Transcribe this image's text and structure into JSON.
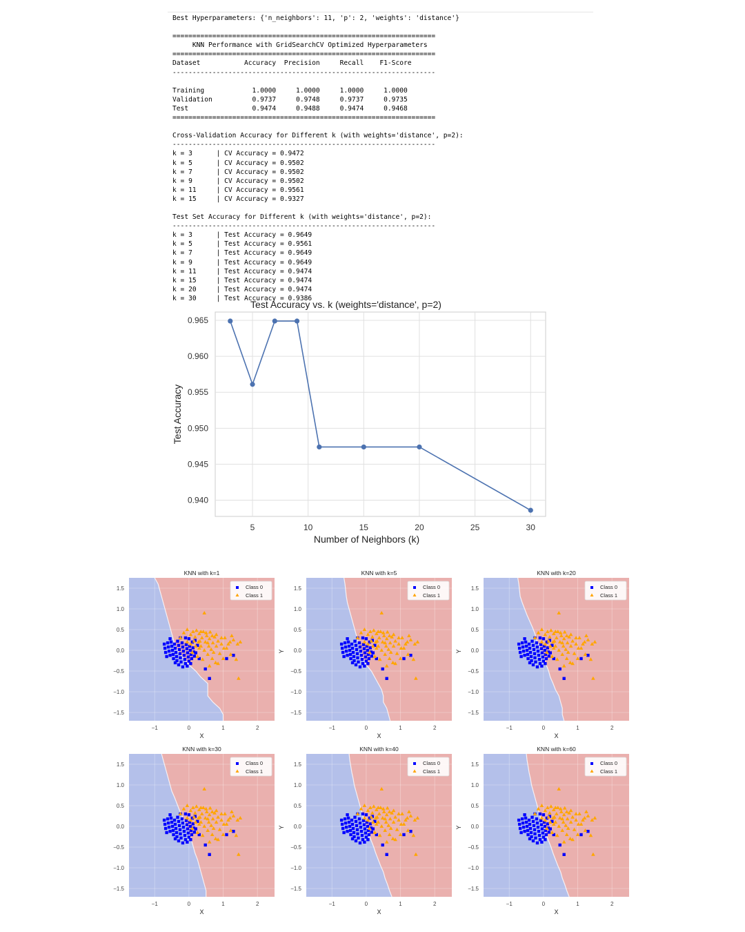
{
  "console": {
    "best_params": "Best Hyperparameters: {'n_neighbors': 11, 'p': 2, 'weights': 'distance'}",
    "rule_double": "==================================================================",
    "rule_single": "------------------------------------------------------------------",
    "table_title": "     KNN Performance with GridSearchCV Optimized Hyperparameters",
    "table_header": "Dataset           Accuracy  Precision     Recall    F1-Score",
    "table_rows": [
      "Training            1.0000     1.0000     1.0000     1.0000",
      "Validation          0.9737     0.9748     0.9737     0.9735",
      "Test                0.9474     0.9488     0.9474     0.9468"
    ],
    "cv_title": "Cross-Validation Accuracy for Different k (with weights='distance', p=2):",
    "cv_rows": [
      "k = 3      | CV Accuracy = 0.9472",
      "k = 5      | CV Accuracy = 0.9502",
      "k = 7      | CV Accuracy = 0.9502",
      "k = 9      | CV Accuracy = 0.9502",
      "k = 11     | CV Accuracy = 0.9561",
      "k = 15     | CV Accuracy = 0.9327"
    ],
    "test_title": "Test Set Accuracy for Different k (with weights='distance', p=2):",
    "test_rows": [
      "k = 3      | Test Accuracy = 0.9649",
      "k = 5      | Test Accuracy = 0.9561",
      "k = 7      | Test Accuracy = 0.9649",
      "k = 9      | Test Accuracy = 0.9649",
      "k = 11     | Test Accuracy = 0.9474",
      "k = 15     | Test Accuracy = 0.9474",
      "k = 20     | Test Accuracy = 0.9474",
      "k = 30     | Test Accuracy = 0.9386"
    ]
  },
  "chart_data": [
    {
      "type": "line",
      "title": "Test Accuracy vs. k (weights='distance', p=2)",
      "xlabel": "Number of Neighbors (k)",
      "ylabel": "Test Accuracy",
      "x": [
        3,
        5,
        7,
        9,
        11,
        15,
        20,
        30
      ],
      "y": [
        0.9649,
        0.9561,
        0.9649,
        0.9649,
        0.9474,
        0.9474,
        0.9474,
        0.9386
      ],
      "xticks": [
        5,
        10,
        15,
        20,
        25,
        30
      ],
      "xtick_labels": [
        "5",
        "10",
        "15",
        "20",
        "25",
        "30"
      ],
      "yticks": [
        0.94,
        0.945,
        0.95,
        0.955,
        0.96,
        0.965
      ],
      "ytick_labels": [
        "0.940",
        "0.945",
        "0.950",
        "0.955",
        "0.960",
        "0.965"
      ],
      "xlim": [
        1.65,
        31.35
      ],
      "ylim": [
        0.93775,
        0.96615
      ],
      "grid": true,
      "color": "#4c72b0"
    },
    {
      "type": "scatter",
      "title": "KNN with k=1",
      "k": 1,
      "xlabel": "X",
      "ylabel": "",
      "legend_position": "top-right",
      "legend": [
        "Class 0",
        "Class 1"
      ],
      "xticks": [
        "−1",
        "0",
        "1",
        "2"
      ],
      "yticks": [
        "1.5",
        "1.0",
        "0.5",
        "0.0",
        "−0.5",
        "−1.0",
        "−1.5"
      ],
      "xlim": [
        -1.75,
        2.5
      ],
      "ylim": [
        -1.7,
        1.75
      ],
      "boundary_x": [
        -1.0,
        -0.9,
        -0.85,
        -0.8,
        -0.75,
        -0.7,
        -0.65,
        -0.6,
        -0.55,
        -0.5,
        -0.45,
        -0.4,
        -0.3,
        -0.15,
        0.0,
        0.2,
        0.35,
        0.55,
        0.55,
        0.55,
        0.7,
        0.9,
        1.0,
        1.0
      ],
      "class_colors": [
        "#0000ff",
        "#ffa500"
      ],
      "region_colors": [
        "#b4c0ea",
        "#eab0ae"
      ]
    },
    {
      "type": "scatter",
      "title": "KNN with k=5",
      "k": 5,
      "xlabel": "X",
      "ylabel": "Y",
      "legend_position": "top-right",
      "legend": [
        "Class 0",
        "Class 1"
      ],
      "xticks": [
        "−1",
        "0",
        "1",
        "2"
      ],
      "yticks": [
        "1.5",
        "1.0",
        "0.5",
        "0.0",
        "−0.5",
        "−1.0",
        "−1.5"
      ],
      "xlim": [
        -1.75,
        2.5
      ],
      "ylim": [
        -1.7,
        1.75
      ],
      "boundary_x": [
        -0.65,
        -0.62,
        -0.6,
        -0.58,
        -0.55,
        -0.5,
        -0.45,
        -0.4,
        -0.35,
        -0.3,
        -0.25,
        -0.2,
        -0.15,
        -0.1,
        0.0,
        0.15,
        0.25,
        0.35,
        0.45,
        0.5,
        0.5,
        0.6,
        0.65,
        0.7
      ],
      "class_colors": [
        "#0000ff",
        "#ffa500"
      ],
      "region_colors": [
        "#b4c0ea",
        "#eab0ae"
      ]
    },
    {
      "type": "scatter",
      "title": "KNN with k=20",
      "k": 20,
      "xlabel": "X",
      "ylabel": "Y",
      "legend_position": "top-right",
      "legend": [
        "Class 0",
        "Class 1"
      ],
      "xticks": [
        "−1",
        "0",
        "1",
        "2"
      ],
      "yticks": [
        "1.5",
        "1.0",
        "0.5",
        "0.0",
        "−0.5",
        "−1.0",
        "−1.5"
      ],
      "xlim": [
        -1.75,
        2.5
      ],
      "ylim": [
        -1.7,
        1.75
      ],
      "boundary_x": [
        -0.75,
        -0.72,
        -0.7,
        -0.68,
        -0.62,
        -0.55,
        -0.48,
        -0.4,
        -0.32,
        -0.25,
        -0.2,
        -0.12,
        -0.05,
        0.02,
        0.08,
        0.15,
        0.2,
        0.28,
        0.35,
        0.45,
        0.5,
        0.55,
        0.55,
        0.6
      ],
      "class_colors": [
        "#0000ff",
        "#ffa500"
      ],
      "region_colors": [
        "#b4c0ea",
        "#eab0ae"
      ]
    },
    {
      "type": "scatter",
      "title": "KNN with k=30",
      "k": 30,
      "xlabel": "X",
      "ylabel": "",
      "legend_position": "top-right",
      "legend": [
        "Class 0",
        "Class 1"
      ],
      "xticks": [
        "−1",
        "0",
        "1",
        "2"
      ],
      "yticks": [
        "1.5",
        "1.0",
        "0.5",
        "0.0",
        "−0.5",
        "−1.0",
        "−1.5"
      ],
      "xlim": [
        -1.75,
        2.5
      ],
      "ylim": [
        -1.7,
        1.75
      ],
      "boundary_x": [
        -0.8,
        -0.75,
        -0.7,
        -0.65,
        -0.6,
        -0.55,
        -0.5,
        -0.42,
        -0.35,
        -0.28,
        -0.2,
        -0.12,
        -0.05,
        0.02,
        0.08,
        0.13,
        0.18,
        0.25,
        0.3,
        0.35,
        0.4,
        0.45,
        0.5,
        0.5
      ],
      "class_colors": [
        "#0000ff",
        "#ffa500"
      ],
      "region_colors": [
        "#b4c0ea",
        "#eab0ae"
      ]
    },
    {
      "type": "scatter",
      "title": "KNN with k=40",
      "k": 40,
      "xlabel": "X",
      "ylabel": "Y",
      "legend_position": "top-right",
      "legend": [
        "Class 0",
        "Class 1"
      ],
      "xticks": [
        "−1",
        "0",
        "1",
        "2"
      ],
      "yticks": [
        "1.5",
        "1.0",
        "0.5",
        "0.0",
        "−0.5",
        "−1.0",
        "−1.5"
      ],
      "xlim": [
        -1.75,
        2.5
      ],
      "ylim": [
        -1.7,
        1.75
      ],
      "boundary_x": [
        -0.5,
        -0.48,
        -0.45,
        -0.42,
        -0.38,
        -0.35,
        -0.3,
        -0.25,
        -0.2,
        -0.15,
        -0.1,
        -0.05,
        0.02,
        0.08,
        0.15,
        0.22,
        0.28,
        0.35,
        0.42,
        0.5,
        0.55,
        0.62,
        0.68,
        0.75
      ],
      "class_colors": [
        "#0000ff",
        "#ffa500"
      ],
      "region_colors": [
        "#b4c0ea",
        "#eab0ae"
      ]
    },
    {
      "type": "scatter",
      "title": "KNN with k=60",
      "k": 60,
      "xlabel": "X",
      "ylabel": "Y",
      "legend_position": "top-right",
      "legend": [
        "Class 0",
        "Class 1"
      ],
      "xticks": [
        "−1",
        "0",
        "1",
        "2"
      ],
      "yticks": [
        "1.5",
        "1.0",
        "0.5",
        "0.0",
        "−0.5",
        "−1.0",
        "−1.5"
      ],
      "xlim": [
        -1.75,
        2.5
      ],
      "ylim": [
        -1.7,
        1.75
      ],
      "boundary_x": [
        -0.5,
        -0.48,
        -0.45,
        -0.42,
        -0.38,
        -0.35,
        -0.3,
        -0.25,
        -0.2,
        -0.15,
        -0.1,
        -0.05,
        0.02,
        0.08,
        0.15,
        0.22,
        0.28,
        0.35,
        0.42,
        0.5,
        0.55,
        0.62,
        0.68,
        0.75
      ],
      "class_colors": [
        "#0000ff",
        "#ffa500"
      ],
      "region_colors": [
        "#b4c0ea",
        "#eab0ae"
      ]
    }
  ],
  "scatter_points": {
    "class0": [
      [
        -0.72,
        0.15
      ],
      [
        -0.7,
        0.05
      ],
      [
        -0.68,
        -0.05
      ],
      [
        -0.62,
        0.18
      ],
      [
        -0.6,
        0.08
      ],
      [
        -0.58,
        -0.02
      ],
      [
        -0.55,
        -0.12
      ],
      [
        -0.52,
        0.2
      ],
      [
        -0.5,
        0.1
      ],
      [
        -0.48,
        0.0
      ],
      [
        -0.46,
        -0.1
      ],
      [
        -0.45,
        -0.2
      ],
      [
        -0.42,
        0.15
      ],
      [
        -0.4,
        0.05
      ],
      [
        -0.38,
        -0.05
      ],
      [
        -0.36,
        -0.15
      ],
      [
        -0.35,
        -0.25
      ],
      [
        -0.33,
        0.22
      ],
      [
        -0.3,
        0.12
      ],
      [
        -0.28,
        0.02
      ],
      [
        -0.26,
        -0.08
      ],
      [
        -0.25,
        -0.18
      ],
      [
        -0.23,
        -0.28
      ],
      [
        -0.2,
        0.18
      ],
      [
        -0.18,
        0.08
      ],
      [
        -0.16,
        -0.02
      ],
      [
        -0.14,
        -0.12
      ],
      [
        -0.12,
        -0.22
      ],
      [
        -0.1,
        -0.32
      ],
      [
        -0.08,
        0.14
      ],
      [
        -0.06,
        0.04
      ],
      [
        -0.04,
        -0.06
      ],
      [
        -0.02,
        -0.16
      ],
      [
        0.0,
        -0.26
      ],
      [
        0.02,
        0.1
      ],
      [
        0.04,
        0.0
      ],
      [
        0.06,
        -0.1
      ],
      [
        0.08,
        -0.2
      ],
      [
        0.1,
        0.2
      ],
      [
        0.12,
        0.06
      ],
      [
        0.14,
        -0.04
      ],
      [
        0.16,
        -0.14
      ],
      [
        -0.3,
        -0.35
      ],
      [
        -0.18,
        -0.4
      ],
      [
        -0.05,
        -0.38
      ],
      [
        0.05,
        -0.32
      ],
      [
        -0.4,
        -0.3
      ],
      [
        -0.25,
        0.3
      ],
      [
        -0.1,
        0.3
      ],
      [
        0.0,
        0.28
      ],
      [
        0.2,
        -0.06
      ],
      [
        0.25,
        0.12
      ],
      [
        0.48,
        -0.45
      ],
      [
        0.6,
        -0.68
      ],
      [
        1.1,
        -0.2
      ],
      [
        1.3,
        -0.12
      ],
      [
        -0.55,
        0.28
      ],
      [
        -0.65,
        -0.15
      ],
      [
        0.18,
        0.24
      ],
      [
        0.3,
        -0.2
      ]
    ],
    "class1": [
      [
        -0.25,
        0.3
      ],
      [
        -0.15,
        0.42
      ],
      [
        -0.05,
        0.5
      ],
      [
        0.05,
        0.38
      ],
      [
        0.12,
        0.45
      ],
      [
        0.18,
        0.32
      ],
      [
        0.22,
        0.48
      ],
      [
        0.28,
        0.2
      ],
      [
        0.3,
        0.4
      ],
      [
        0.35,
        0.1
      ],
      [
        0.38,
        0.3
      ],
      [
        0.42,
        0.45
      ],
      [
        0.45,
        0.0
      ],
      [
        0.48,
        0.2
      ],
      [
        0.52,
        0.35
      ],
      [
        0.55,
        -0.1
      ],
      [
        0.58,
        0.1
      ],
      [
        0.6,
        0.28
      ],
      [
        0.62,
        0.44
      ],
      [
        0.65,
        0.02
      ],
      [
        0.68,
        -0.2
      ],
      [
        0.7,
        0.18
      ],
      [
        0.72,
        -0.05
      ],
      [
        0.75,
        0.32
      ],
      [
        0.78,
        -0.3
      ],
      [
        0.8,
        0.1
      ],
      [
        0.85,
        0.22
      ],
      [
        0.9,
        -0.08
      ],
      [
        0.95,
        0.15
      ],
      [
        1.0,
        -0.2
      ],
      [
        1.05,
        0.3
      ],
      [
        1.1,
        0.05
      ],
      [
        1.15,
        0.15
      ],
      [
        1.22,
        -0.1
      ],
      [
        1.3,
        0.25
      ],
      [
        1.38,
        -0.22
      ],
      [
        1.42,
        0.15
      ],
      [
        1.5,
        0.2
      ],
      [
        1.45,
        -0.68
      ],
      [
        0.45,
        0.9
      ],
      [
        0.2,
        0.1
      ],
      [
        0.1,
        -0.05
      ],
      [
        0.25,
        -0.15
      ],
      [
        0.3,
        0.05
      ],
      [
        -0.05,
        0.2
      ],
      [
        0.15,
        0.22
      ],
      [
        0.4,
        -0.22
      ],
      [
        0.6,
        -0.38
      ],
      [
        0.95,
        0.3
      ],
      [
        1.25,
        0.35
      ],
      [
        0.35,
        0.45
      ],
      [
        0.5,
        0.42
      ],
      [
        0.85,
        -0.32
      ],
      [
        1.02,
        0.05
      ],
      [
        0.68,
        0.35
      ],
      [
        0.05,
        0.15
      ],
      [
        0.32,
        0.22
      ],
      [
        0.55,
        0.18
      ],
      [
        0.8,
        0.38
      ],
      [
        1.2,
        0.2
      ]
    ]
  }
}
